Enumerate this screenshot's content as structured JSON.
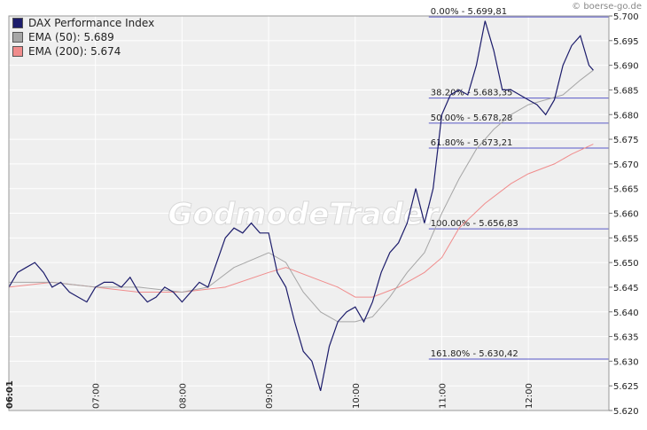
{
  "source_label": "© boerse-go.de",
  "watermark": "GodmodeTrader",
  "colors": {
    "dax": "#1c1c6b",
    "ema50": "#a6a6a6",
    "ema200": "#f08c8c",
    "fib": "#5a5ac8",
    "plot_bg": "#efefef",
    "grid": "#ffffff"
  },
  "chart_data": {
    "type": "line",
    "grid": true,
    "legend_position": "top-left",
    "ylim": [
      5.62,
      5.7
    ],
    "xlim": [
      6.0,
      12.93
    ],
    "y_ticks": [
      "5.620",
      "5.625",
      "5.630",
      "5.635",
      "5.640",
      "5.645",
      "5.650",
      "5.655",
      "5.660",
      "5.665",
      "5.670",
      "5.675",
      "5.680",
      "5.685",
      "5.690",
      "5.695",
      "5.700"
    ],
    "x_ticks": [
      {
        "t": 6.0,
        "label": "06:01"
      },
      {
        "t": 7.0,
        "label": "07:00"
      },
      {
        "t": 8.0,
        "label": "08:00"
      },
      {
        "t": 9.0,
        "label": "09:00"
      },
      {
        "t": 10.0,
        "label": "10:00"
      },
      {
        "t": 11.0,
        "label": "11:00"
      },
      {
        "t": 12.0,
        "label": "12:00"
      }
    ],
    "series": [
      {
        "name": "DAX Performance Index",
        "legend_label": "DAX Performance Index",
        "color": "#1c1c6b",
        "points": [
          [
            6.0,
            5.645
          ],
          [
            6.1,
            5.648
          ],
          [
            6.2,
            5.649
          ],
          [
            6.3,
            5.65
          ],
          [
            6.4,
            5.648
          ],
          [
            6.5,
            5.645
          ],
          [
            6.6,
            5.646
          ],
          [
            6.7,
            5.644
          ],
          [
            6.8,
            5.643
          ],
          [
            6.9,
            5.642
          ],
          [
            7.0,
            5.645
          ],
          [
            7.1,
            5.646
          ],
          [
            7.2,
            5.646
          ],
          [
            7.3,
            5.645
          ],
          [
            7.4,
            5.647
          ],
          [
            7.5,
            5.644
          ],
          [
            7.6,
            5.642
          ],
          [
            7.7,
            5.643
          ],
          [
            7.8,
            5.645
          ],
          [
            7.9,
            5.644
          ],
          [
            8.0,
            5.642
          ],
          [
            8.1,
            5.644
          ],
          [
            8.2,
            5.646
          ],
          [
            8.3,
            5.645
          ],
          [
            8.4,
            5.65
          ],
          [
            8.5,
            5.655
          ],
          [
            8.6,
            5.657
          ],
          [
            8.7,
            5.656
          ],
          [
            8.8,
            5.658
          ],
          [
            8.9,
            5.656
          ],
          [
            9.0,
            5.656
          ],
          [
            9.1,
            5.648
          ],
          [
            9.2,
            5.645
          ],
          [
            9.3,
            5.638
          ],
          [
            9.4,
            5.632
          ],
          [
            9.5,
            5.63
          ],
          [
            9.6,
            5.624
          ],
          [
            9.7,
            5.633
          ],
          [
            9.8,
            5.638
          ],
          [
            9.9,
            5.64
          ],
          [
            10.0,
            5.641
          ],
          [
            10.1,
            5.638
          ],
          [
            10.2,
            5.642
          ],
          [
            10.3,
            5.648
          ],
          [
            10.4,
            5.652
          ],
          [
            10.5,
            5.654
          ],
          [
            10.6,
            5.658
          ],
          [
            10.7,
            5.665
          ],
          [
            10.8,
            5.658
          ],
          [
            10.9,
            5.665
          ],
          [
            11.0,
            5.68
          ],
          [
            11.1,
            5.684
          ],
          [
            11.2,
            5.685
          ],
          [
            11.3,
            5.684
          ],
          [
            11.4,
            5.69
          ],
          [
            11.5,
            5.699
          ],
          [
            11.6,
            5.693
          ],
          [
            11.7,
            5.685
          ],
          [
            11.8,
            5.685
          ],
          [
            11.9,
            5.684
          ],
          [
            12.0,
            5.683
          ],
          [
            12.1,
            5.682
          ],
          [
            12.2,
            5.68
          ],
          [
            12.3,
            5.683
          ],
          [
            12.4,
            5.69
          ],
          [
            12.5,
            5.694
          ],
          [
            12.6,
            5.696
          ],
          [
            12.7,
            5.69
          ],
          [
            12.75,
            5.689
          ]
        ]
      },
      {
        "name": "EMA (50)",
        "legend_label": "EMA (50): 5.689",
        "color": "#a6a6a6",
        "points": [
          [
            6.0,
            5.646
          ],
          [
            6.5,
            5.646
          ],
          [
            7.0,
            5.645
          ],
          [
            7.5,
            5.645
          ],
          [
            8.0,
            5.644
          ],
          [
            8.3,
            5.645
          ],
          [
            8.6,
            5.649
          ],
          [
            9.0,
            5.652
          ],
          [
            9.2,
            5.65
          ],
          [
            9.4,
            5.644
          ],
          [
            9.6,
            5.64
          ],
          [
            9.8,
            5.638
          ],
          [
            10.0,
            5.638
          ],
          [
            10.2,
            5.639
          ],
          [
            10.4,
            5.643
          ],
          [
            10.6,
            5.648
          ],
          [
            10.8,
            5.652
          ],
          [
            11.0,
            5.66
          ],
          [
            11.2,
            5.667
          ],
          [
            11.4,
            5.673
          ],
          [
            11.6,
            5.677
          ],
          [
            11.8,
            5.68
          ],
          [
            12.0,
            5.682
          ],
          [
            12.2,
            5.683
          ],
          [
            12.4,
            5.684
          ],
          [
            12.6,
            5.687
          ],
          [
            12.75,
            5.689
          ]
        ]
      },
      {
        "name": "EMA (200)",
        "legend_label": "EMA (200): 5.674",
        "color": "#f08c8c",
        "points": [
          [
            6.0,
            5.645
          ],
          [
            6.5,
            5.646
          ],
          [
            7.0,
            5.645
          ],
          [
            7.5,
            5.644
          ],
          [
            8.0,
            5.644
          ],
          [
            8.5,
            5.645
          ],
          [
            9.0,
            5.648
          ],
          [
            9.2,
            5.649
          ],
          [
            9.5,
            5.647
          ],
          [
            9.8,
            5.645
          ],
          [
            10.0,
            5.643
          ],
          [
            10.2,
            5.643
          ],
          [
            10.5,
            5.645
          ],
          [
            10.8,
            5.648
          ],
          [
            11.0,
            5.651
          ],
          [
            11.2,
            5.657
          ],
          [
            11.5,
            5.662
          ],
          [
            11.8,
            5.666
          ],
          [
            12.0,
            5.668
          ],
          [
            12.3,
            5.67
          ],
          [
            12.5,
            5.672
          ],
          [
            12.75,
            5.674
          ]
        ]
      }
    ],
    "fibonacci_levels": [
      {
        "label": "0.00% - 5.699,81",
        "value": 5.6998
      },
      {
        "label": "38.20% - 5.683,35",
        "value": 5.68335
      },
      {
        "label": "50.00% - 5.678,28",
        "value": 5.67828
      },
      {
        "label": "61.80% - 5.673,21",
        "value": 5.67321
      },
      {
        "label": "100.00% - 5.656,83",
        "value": 5.65683
      },
      {
        "label": "161.80% - 5.630,42",
        "value": 5.63042
      }
    ],
    "fibonacci_start_time": 10.85
  }
}
